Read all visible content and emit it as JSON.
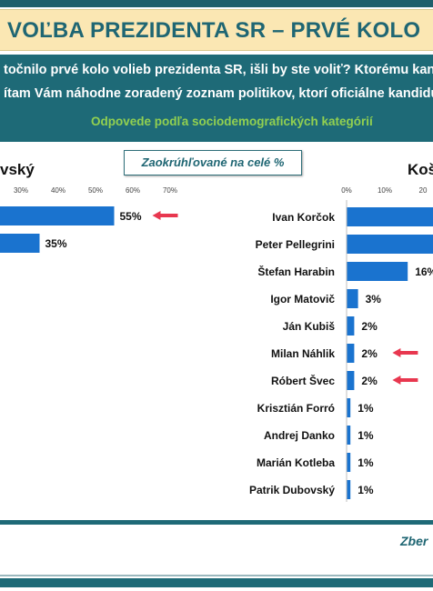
{
  "header": {
    "title": "VOĽBA PREZIDENTA SR – PRVÉ KOLO",
    "question_line1": "točnilo prvé kolo volieb prezidenta SR, išli by ste voliť? Ktorému kandi",
    "question_line2": "ítam Vám náhodne zoradený zoznam politikov, ktorí oficiálne kandidu",
    "subtitle": "Odpovede podľa sociodemografických kategórií"
  },
  "note": "Zaokrúhľované na celé %",
  "footer": "Zber",
  "colors": {
    "bar": "#1a73cf",
    "arrow": "#e8374f",
    "teal": "#1e6a77",
    "green": "#92d050",
    "title_bg": "#fbe7b3"
  },
  "chart_data": [
    {
      "type": "bar",
      "orientation": "horizontal",
      "title": "vský",
      "axis_ticks": [
        "30%",
        "40%",
        "50%",
        "60%",
        "70%"
      ],
      "xlim": [
        0,
        70
      ],
      "categories": [
        "",
        ""
      ],
      "values": [
        55,
        35
      ],
      "labels": [
        "55%",
        "35%"
      ],
      "arrows": [
        true,
        false
      ]
    },
    {
      "type": "bar",
      "orientation": "horizontal",
      "title": "Koš",
      "axis_ticks": [
        "0%",
        "10%",
        "20"
      ],
      "xlim": [
        0,
        20
      ],
      "categories": [
        "Ivan Korčok",
        "Peter Pellegrini",
        "Štefan Harabin",
        "Igor Matovič",
        "Ján Kubiš",
        "Milan Náhlik",
        "Róbert Švec",
        "Krisztián Forró",
        "Andrej Danko",
        "Marián Kotleba",
        "Patrik Dubovský"
      ],
      "values": [
        null,
        null,
        16,
        3,
        2,
        2,
        2,
        1,
        1,
        1,
        1
      ],
      "labels": [
        "",
        "",
        "16%",
        "3%",
        "2%",
        "2%",
        "2%",
        "1%",
        "1%",
        "1%",
        "1%"
      ],
      "arrows": [
        false,
        false,
        false,
        false,
        false,
        true,
        true,
        false,
        false,
        false,
        false
      ]
    }
  ]
}
